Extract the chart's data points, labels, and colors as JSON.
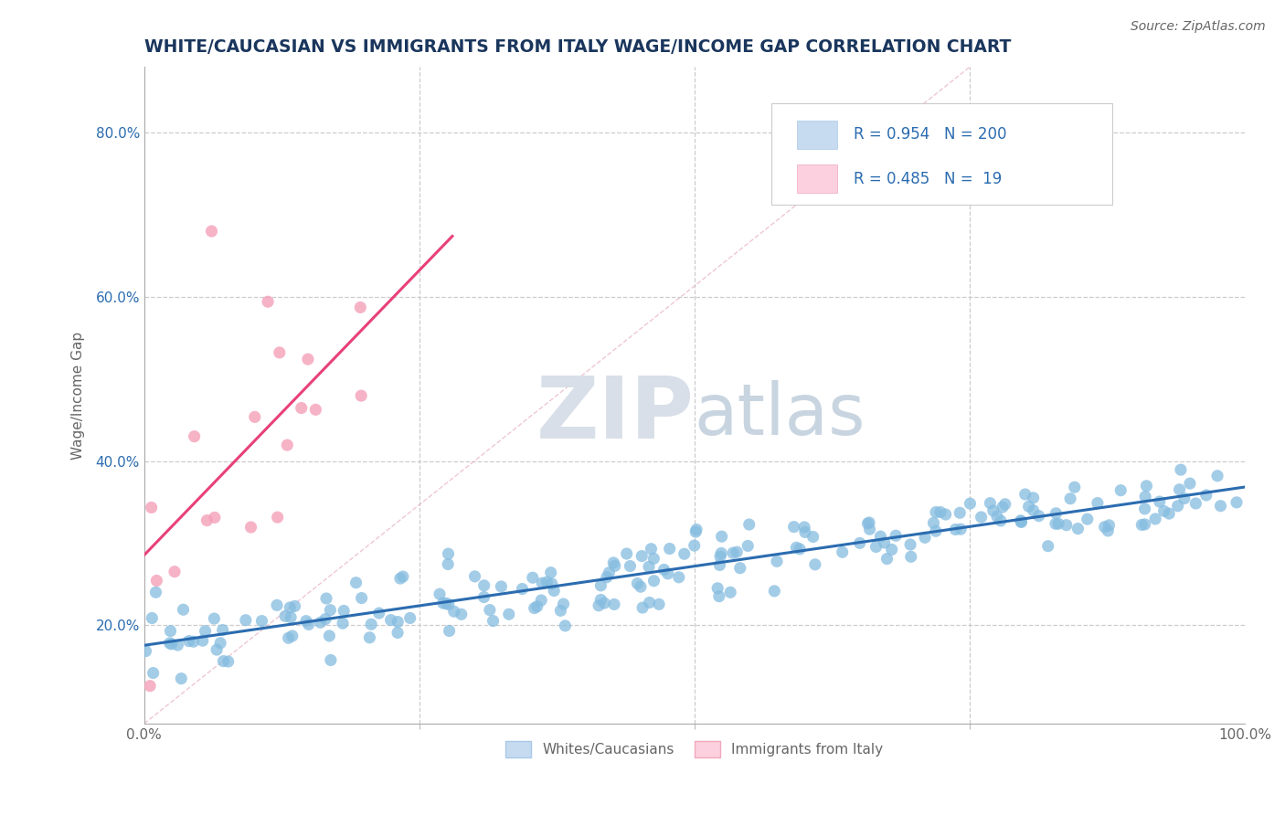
{
  "title": "WHITE/CAUCASIAN VS IMMIGRANTS FROM ITALY WAGE/INCOME GAP CORRELATION CHART",
  "source": "Source: ZipAtlas.com",
  "ylabel": "Wage/Income Gap",
  "xlim": [
    0.0,
    1.0
  ],
  "ylim": [
    0.08,
    0.88
  ],
  "ytick_positions": [
    0.2,
    0.4,
    0.6,
    0.8
  ],
  "blue_scatter_color": "#85bce0",
  "blue_scatter_alpha": 0.75,
  "pink_scatter_color": "#f4a0b8",
  "pink_scatter_alpha": 0.8,
  "line_blue": "#2b6cb0",
  "line_pink": "#e8407a",
  "R_blue": 0.954,
  "N_blue": 200,
  "R_pink": 0.485,
  "N_pink": 19,
  "watermark_zip": "ZIP",
  "watermark_atlas": "atlas",
  "legend_label_blue": "Whites/Caucasians",
  "legend_label_pink": "Immigrants from Italy",
  "title_color": "#1a365d",
  "axis_label_color": "#666666",
  "grid_color": "#cccccc",
  "tick_color_blue": "#2b6cb0",
  "title_fontsize": 13.5,
  "label_fontsize": 11,
  "source_fontsize": 10,
  "legend_fontsize": 12,
  "blue_legend_fill": "#c6dbef",
  "pink_legend_fill": "#fcd0de"
}
